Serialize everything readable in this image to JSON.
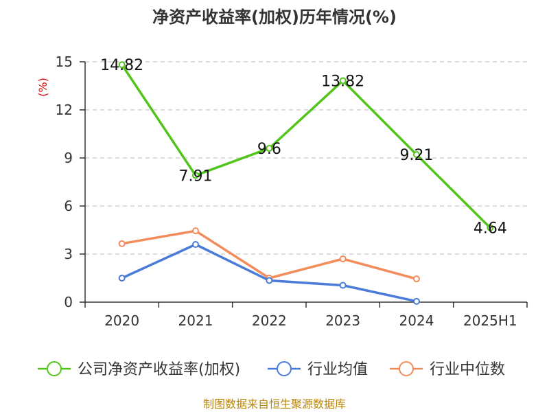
{
  "chart_data": {
    "type": "line",
    "title": "净资产收益率(加权)历年情况(%)",
    "ylabel": "(%)",
    "xlabel": "",
    "categories": [
      "2020",
      "2021",
      "2022",
      "2023",
      "2024",
      "2025H1"
    ],
    "ylim": [
      0,
      15
    ],
    "yticks": [
      0,
      3,
      6,
      9,
      12,
      15
    ],
    "grid": true,
    "legend_position": "bottom",
    "series": [
      {
        "name": "公司净资产收益率(加权)",
        "color": "#52c41a",
        "values": [
          14.82,
          7.91,
          9.6,
          13.82,
          9.21,
          4.64
        ],
        "data_labels": [
          "14.82",
          "7.91",
          "9.6",
          "13.82",
          "9.21",
          "4.64"
        ]
      },
      {
        "name": "行业均值",
        "color": "#4a7bd8",
        "values": [
          1.5,
          3.6,
          1.35,
          1.05,
          0.05,
          null
        ],
        "data_labels": []
      },
      {
        "name": "行业中位数",
        "color": "#f28c5a",
        "values": [
          3.65,
          4.45,
          1.5,
          2.7,
          1.45,
          null
        ],
        "data_labels": []
      }
    ]
  },
  "source": "制图数据来自恒生聚源数据库"
}
